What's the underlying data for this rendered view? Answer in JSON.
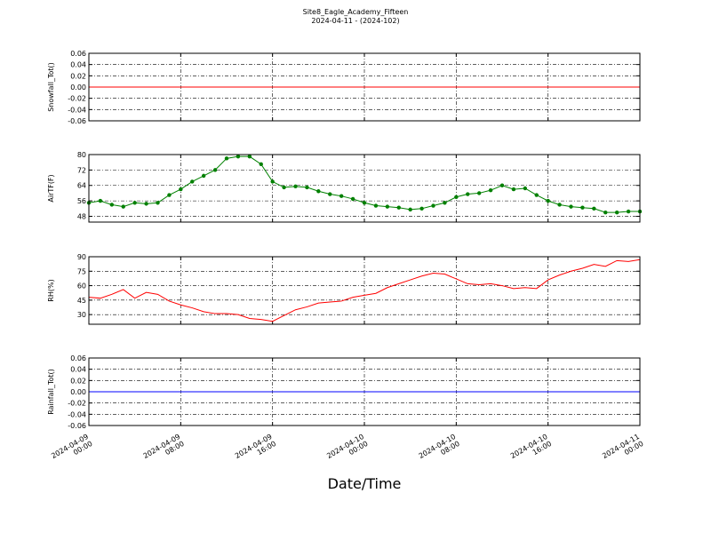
{
  "chart_data": [
    {
      "type": "line",
      "title": "Site8_Eagle_Academy_Fifteen",
      "subtitle": "2024-04-11 - (2024-102)",
      "ylabel": "Snowfall_Tot()",
      "color": "#ff0000",
      "grid": true,
      "x": [
        "2024-04-09 00:00",
        "2024-04-11 00:00"
      ],
      "values": [
        0,
        0
      ],
      "xlim": [
        "2024-04-09 00:00",
        "2024-04-11 00:00"
      ],
      "xticks": [
        "2024-04-09 00:00",
        "2024-04-09 08:00",
        "2024-04-09 16:00",
        "2024-04-10 00:00",
        "2024-04-10 08:00",
        "2024-04-10 16:00",
        "2024-04-11 00:00"
      ],
      "ylim": [
        -0.06,
        0.06
      ],
      "yticks": [
        -0.06,
        -0.04,
        -0.02,
        {
          "value": 0,
          "label": "0.00"
        },
        0.02,
        0.04,
        0.06
      ]
    },
    {
      "type": "line",
      "ylabel": "AirTF(F)",
      "color": "#008000",
      "marker": "o",
      "grid": true,
      "x": [
        "2024-04-09 00:00",
        "2024-04-09 01:00",
        "2024-04-09 02:00",
        "2024-04-09 03:00",
        "2024-04-09 04:00",
        "2024-04-09 05:00",
        "2024-04-09 06:00",
        "2024-04-09 07:00",
        "2024-04-09 08:00",
        "2024-04-09 09:00",
        "2024-04-09 10:00",
        "2024-04-09 11:00",
        "2024-04-09 12:00",
        "2024-04-09 13:00",
        "2024-04-09 14:00",
        "2024-04-09 15:00",
        "2024-04-09 16:00",
        "2024-04-09 17:00",
        "2024-04-09 18:00",
        "2024-04-09 19:00",
        "2024-04-09 20:00",
        "2024-04-09 21:00",
        "2024-04-09 22:00",
        "2024-04-09 23:00",
        "2024-04-10 00:00",
        "2024-04-10 01:00",
        "2024-04-10 02:00",
        "2024-04-10 03:00",
        "2024-04-10 04:00",
        "2024-04-10 05:00",
        "2024-04-10 06:00",
        "2024-04-10 07:00",
        "2024-04-10 08:00",
        "2024-04-10 09:00",
        "2024-04-10 10:00",
        "2024-04-10 11:00",
        "2024-04-10 12:00",
        "2024-04-10 13:00",
        "2024-04-10 14:00",
        "2024-04-10 15:00",
        "2024-04-10 16:00",
        "2024-04-10 17:00",
        "2024-04-10 18:00",
        "2024-04-10 19:00",
        "2024-04-10 20:00",
        "2024-04-10 21:00",
        "2024-04-10 22:00",
        "2024-04-10 23:00",
        "2024-04-11 00:00"
      ],
      "values": [
        55,
        56,
        54,
        53,
        55,
        54.5,
        55,
        59,
        62,
        66,
        69,
        72,
        78,
        79,
        79,
        75,
        66,
        63,
        63.5,
        63,
        61,
        59.5,
        58.5,
        57,
        55,
        53.5,
        53,
        52.5,
        51.5,
        52,
        53.5,
        55,
        58,
        59.5,
        60,
        61.5,
        64,
        62,
        62.5,
        59,
        56,
        54,
        53,
        52.5,
        52,
        50,
        50,
        50.5,
        50.5
      ],
      "xlim": [
        "2024-04-09 00:00",
        "2024-04-11 00:00"
      ],
      "xticks": [
        "2024-04-09 00:00",
        "2024-04-09 08:00",
        "2024-04-09 16:00",
        "2024-04-10 00:00",
        "2024-04-10 08:00",
        "2024-04-10 16:00",
        "2024-04-11 00:00"
      ],
      "ylim": [
        45,
        80
      ],
      "yticks": [
        48,
        56,
        64,
        72,
        80
      ]
    },
    {
      "type": "line",
      "ylabel": "RH(%)",
      "color": "#ff0000",
      "grid": true,
      "x": [
        "2024-04-09 00:00",
        "2024-04-09 01:00",
        "2024-04-09 02:00",
        "2024-04-09 03:00",
        "2024-04-09 04:00",
        "2024-04-09 05:00",
        "2024-04-09 06:00",
        "2024-04-09 07:00",
        "2024-04-09 08:00",
        "2024-04-09 09:00",
        "2024-04-09 10:00",
        "2024-04-09 11:00",
        "2024-04-09 12:00",
        "2024-04-09 13:00",
        "2024-04-09 14:00",
        "2024-04-09 15:00",
        "2024-04-09 16:00",
        "2024-04-09 17:00",
        "2024-04-09 18:00",
        "2024-04-09 19:00",
        "2024-04-09 20:00",
        "2024-04-09 21:00",
        "2024-04-09 22:00",
        "2024-04-09 23:00",
        "2024-04-10 00:00",
        "2024-04-10 01:00",
        "2024-04-10 02:00",
        "2024-04-10 03:00",
        "2024-04-10 04:00",
        "2024-04-10 05:00",
        "2024-04-10 06:00",
        "2024-04-10 07:00",
        "2024-04-10 08:00",
        "2024-04-10 09:00",
        "2024-04-10 10:00",
        "2024-04-10 11:00",
        "2024-04-10 12:00",
        "2024-04-10 13:00",
        "2024-04-10 14:00",
        "2024-04-10 15:00",
        "2024-04-10 16:00",
        "2024-04-10 17:00",
        "2024-04-10 18:00",
        "2024-04-10 19:00",
        "2024-04-10 20:00",
        "2024-04-10 21:00",
        "2024-04-10 22:00",
        "2024-04-10 23:00",
        "2024-04-11 00:00"
      ],
      "values": [
        48,
        47,
        51,
        56,
        47,
        53,
        51,
        44,
        40,
        37,
        33,
        31,
        31,
        30,
        26,
        25,
        23,
        29,
        35,
        38,
        42,
        43,
        44,
        48,
        50,
        52,
        58,
        62,
        66,
        70,
        73,
        72,
        67,
        62,
        61,
        62,
        60,
        57,
        58,
        57,
        66,
        71,
        75,
        78,
        82,
        80,
        86,
        85,
        87
      ],
      "xlim": [
        "2024-04-09 00:00",
        "2024-04-11 00:00"
      ],
      "xticks": [
        "2024-04-09 00:00",
        "2024-04-09 08:00",
        "2024-04-09 16:00",
        "2024-04-10 00:00",
        "2024-04-10 08:00",
        "2024-04-10 16:00",
        "2024-04-11 00:00"
      ],
      "ylim": [
        20,
        90
      ],
      "yticks": [
        30,
        45,
        60,
        75,
        90
      ]
    },
    {
      "type": "line",
      "ylabel": "Rainfall_Tot()",
      "xlabel": "Date/Time",
      "color": "#0000ff",
      "grid": true,
      "x": [
        "2024-04-09 00:00",
        "2024-04-11 00:00"
      ],
      "values": [
        0,
        0
      ],
      "xlim": [
        "2024-04-09 00:00",
        "2024-04-11 00:00"
      ],
      "xticks": [
        "2024-04-09 00:00",
        "2024-04-09 08:00",
        "2024-04-09 16:00",
        "2024-04-10 00:00",
        "2024-04-10 08:00",
        "2024-04-10 16:00",
        "2024-04-11 00:00"
      ],
      "ylim": [
        -0.06,
        0.06
      ],
      "yticks": [
        -0.06,
        -0.04,
        -0.02,
        {
          "value": 0,
          "label": "0.00"
        },
        0.02,
        0.04,
        0.06
      ]
    }
  ]
}
